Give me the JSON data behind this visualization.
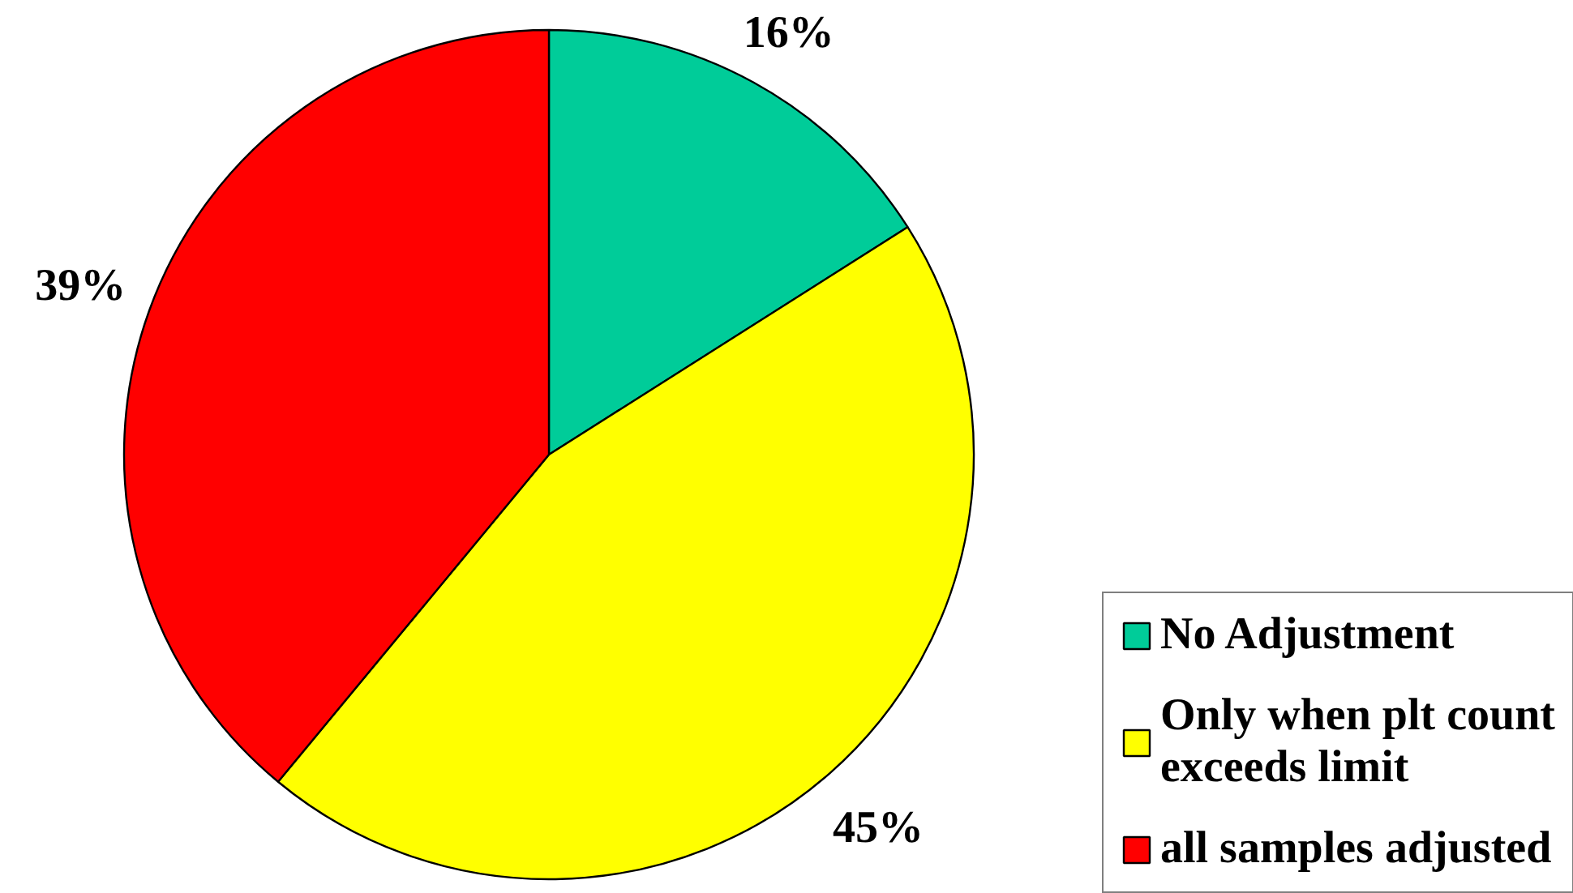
{
  "chart_data": {
    "type": "pie",
    "categories": [
      "No Adjustment",
      "Only when plt count exceeds limit",
      "all samples adjusted"
    ],
    "values": [
      16,
      45,
      39
    ],
    "colors": [
      "#00cc99",
      "#ffff00",
      "#ff0000"
    ],
    "value_labels": [
      "16%",
      "45%",
      "39%"
    ],
    "legend": "bottom right"
  }
}
